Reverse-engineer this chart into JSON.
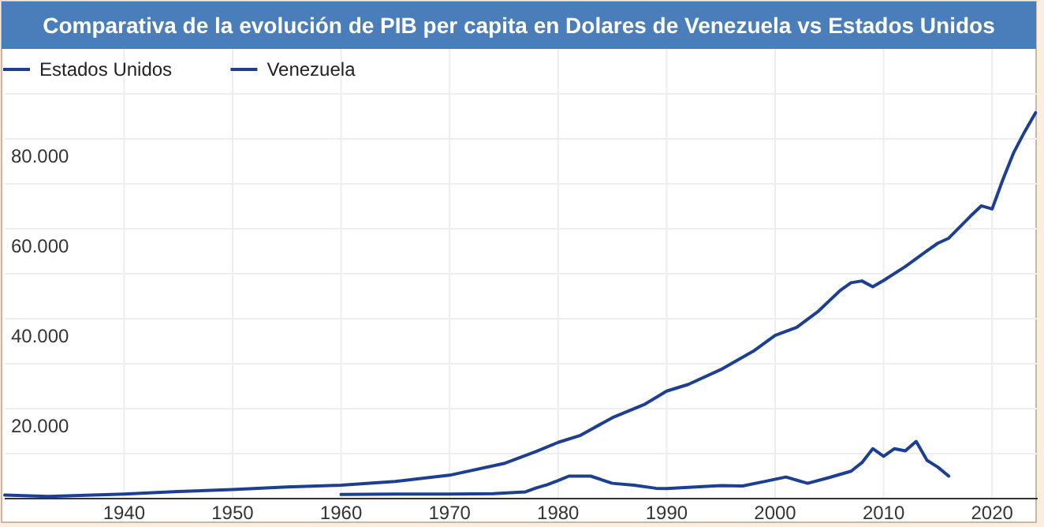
{
  "chart_data": {
    "type": "line",
    "title": "Comparativa de la evolución de PIB per capita en Dolares de Venezuela vs Estados Unidos",
    "series": [
      {
        "name": "Estados Unidos",
        "color": "#1c3f94",
        "x": [
          1929,
          1933,
          1940,
          1945,
          1950,
          1955,
          1960,
          1965,
          1970,
          1975,
          1978,
          1980,
          1982,
          1985,
          1988,
          1990,
          1992,
          1995,
          1998,
          2000,
          2002,
          2004,
          2006,
          2007,
          2008,
          2009,
          2010,
          2012,
          2014,
          2015,
          2016,
          2018,
          2019,
          2020,
          2021,
          2022,
          2023,
          2024
        ],
        "values": [
          800,
          500,
          1000,
          1600,
          2000,
          2600,
          3000,
          3800,
          5200,
          7800,
          10500,
          12500,
          14000,
          18000,
          21000,
          23900,
          25400,
          28700,
          32800,
          36300,
          38100,
          41700,
          46300,
          48000,
          48400,
          47100,
          48500,
          51600,
          55100,
          56800,
          57900,
          62800,
          65100,
          64400,
          71000,
          77000,
          81600,
          85800
        ]
      },
      {
        "name": "Venezuela",
        "color": "#1c3f94",
        "x": [
          1960,
          1965,
          1970,
          1974,
          1977,
          1978,
          1979,
          1980,
          1981,
          1983,
          1985,
          1987,
          1989,
          1990,
          1992,
          1995,
          1997,
          1999,
          2001,
          2003,
          2005,
          2007,
          2008,
          2009,
          2010,
          2011,
          2012,
          2013,
          2014,
          2015,
          2016
        ],
        "values": [
          900,
          1000,
          1000,
          1100,
          1500,
          2400,
          3100,
          4000,
          5000,
          5000,
          3400,
          3000,
          2300,
          2250,
          2500,
          2900,
          2800,
          3800,
          4800,
          3400,
          4700,
          6100,
          8000,
          11100,
          9400,
          11100,
          10600,
          12700,
          8500,
          7000,
          5000
        ]
      }
    ],
    "xlim": [
      1929,
      2024.2
    ],
    "xticks": [
      1940,
      1950,
      1960,
      1970,
      1980,
      1990,
      2000,
      2010,
      2020
    ],
    "ylim": [
      0,
      100000
    ],
    "yticks": [
      {
        "value": 10000,
        "label": null
      },
      {
        "value": 20000,
        "label": "20.000"
      },
      {
        "value": 30000,
        "label": null
      },
      {
        "value": 40000,
        "label": "40.000"
      },
      {
        "value": 50000,
        "label": null
      },
      {
        "value": 60000,
        "label": "60.000"
      },
      {
        "value": 70000,
        "label": null
      },
      {
        "value": 80000,
        "label": "80.000"
      },
      {
        "value": 90000,
        "label": null
      }
    ],
    "grid": true,
    "legend": "top left"
  }
}
